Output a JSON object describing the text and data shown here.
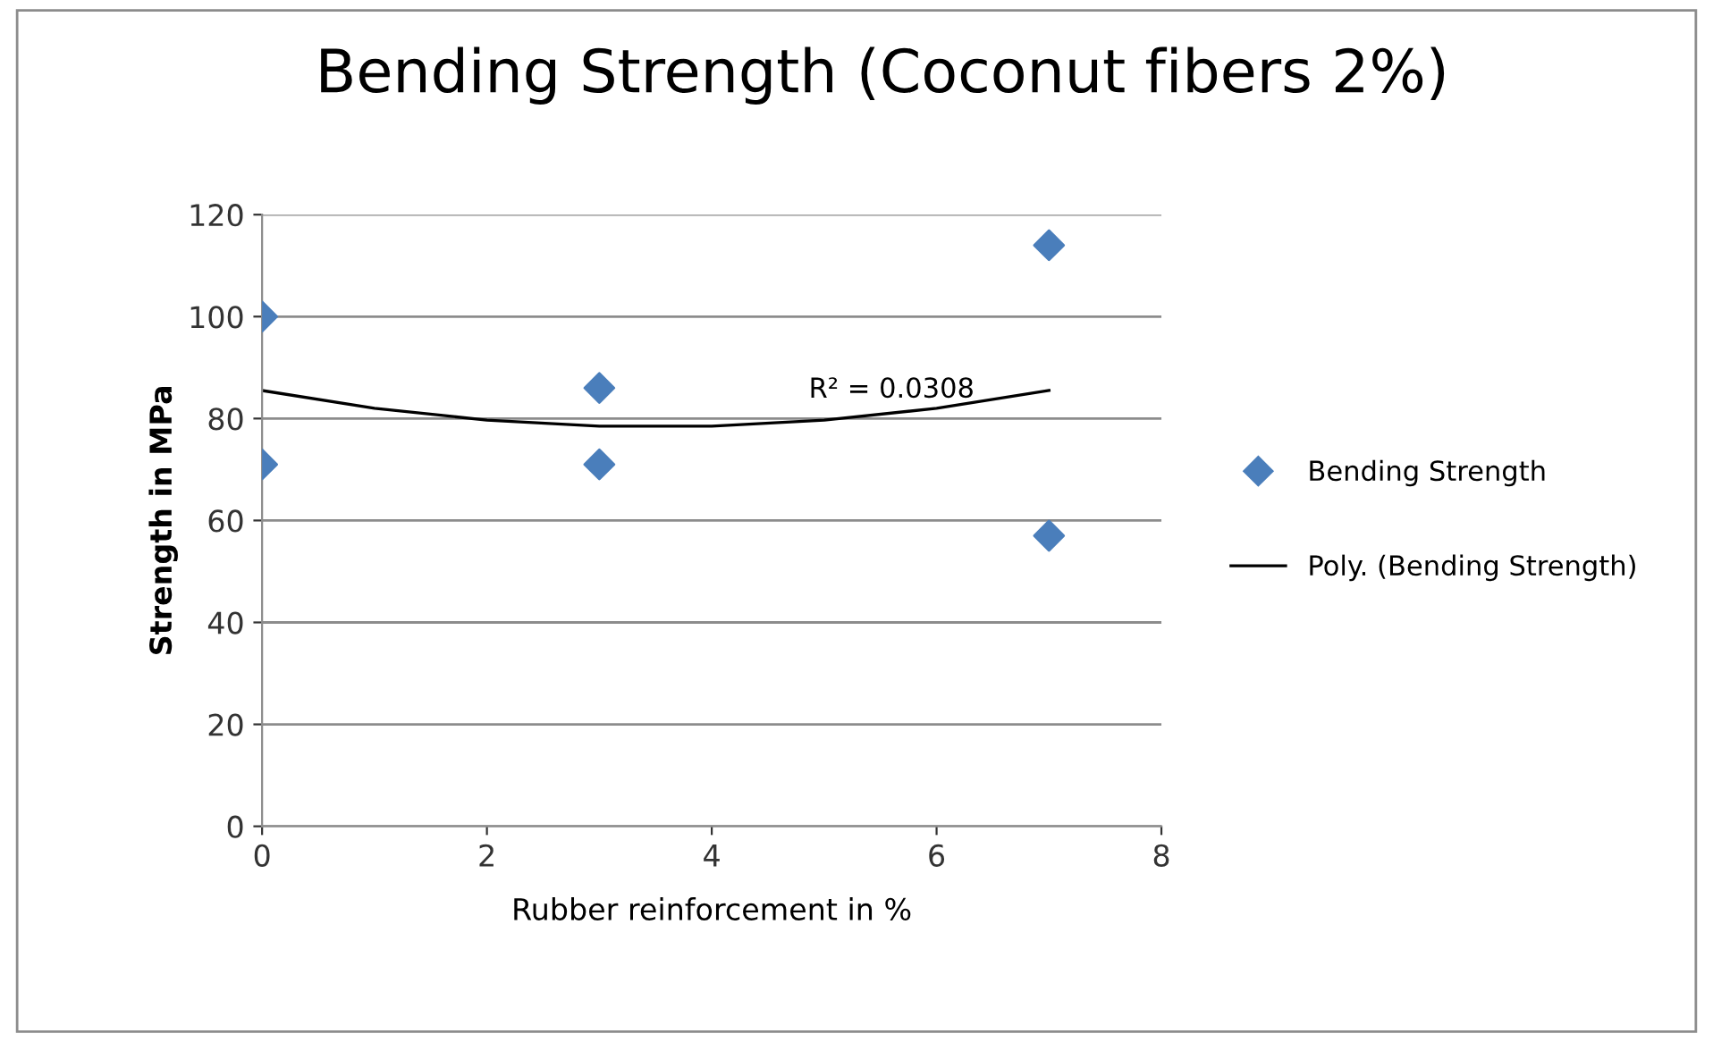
{
  "chart_data": {
    "type": "scatter",
    "title": "Bending Strength (Coconut fibers 2%)",
    "xlabel": "Rubber reinforcement in %",
    "ylabel": "Strength in MPa",
    "series": [
      {
        "name": "Bending Strength",
        "color": "#4a7ebb",
        "marker": "diamond",
        "x": [
          0,
          0,
          3,
          3,
          7,
          7
        ],
        "values": [
          100,
          71,
          86,
          71,
          114,
          57
        ]
      },
      {
        "name": "Poly. (Bending Strength)",
        "type": "line",
        "color": "#000000",
        "marker": "none",
        "line_style": "solid",
        "x": [
          0,
          1,
          2,
          3,
          4,
          5,
          6,
          7
        ],
        "values": [
          85.5,
          82.0,
          79.7,
          78.5,
          78.5,
          79.7,
          82.0,
          85.5
        ]
      }
    ],
    "annotations": [
      {
        "text": "R² = 0.0308",
        "x": 5.6,
        "y": 83
      }
    ],
    "xlim": [
      0,
      8
    ],
    "xticks": [
      0,
      2,
      4,
      6,
      8
    ],
    "ylim": [
      0,
      120
    ],
    "yticks": [
      0,
      20,
      40,
      60,
      80,
      100,
      120
    ],
    "grid": "y",
    "legend": "right"
  }
}
